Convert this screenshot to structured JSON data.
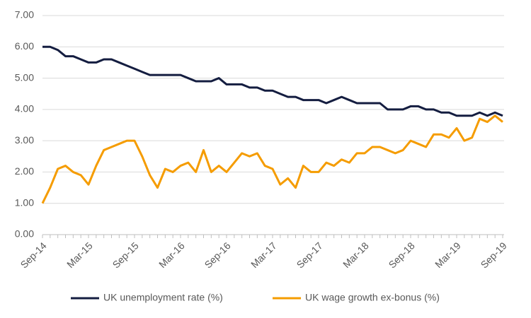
{
  "chart_data": {
    "type": "line",
    "categories": [
      "Sep-14",
      null,
      null,
      null,
      null,
      null,
      "Mar-15",
      null,
      null,
      null,
      null,
      null,
      "Sep-15",
      null,
      null,
      null,
      null,
      null,
      "Mar-16",
      null,
      null,
      null,
      null,
      null,
      "Sep-16",
      null,
      null,
      null,
      null,
      null,
      "Mar-17",
      null,
      null,
      null,
      null,
      null,
      "Sep-17",
      null,
      null,
      null,
      null,
      null,
      "Mar-18",
      null,
      null,
      null,
      null,
      null,
      "Sep-18",
      null,
      null,
      null,
      null,
      null,
      "Mar-19",
      null,
      null,
      null,
      null,
      null,
      "Sep-19"
    ],
    "series": [
      {
        "name": "UK unemployment rate (%)",
        "color": "#141d40",
        "values": [
          6.0,
          6.0,
          5.9,
          5.7,
          5.7,
          5.6,
          5.5,
          5.5,
          5.6,
          5.6,
          5.5,
          5.4,
          5.3,
          5.2,
          5.1,
          5.1,
          5.1,
          5.1,
          5.1,
          5.0,
          4.9,
          4.9,
          4.9,
          5.0,
          4.8,
          4.8,
          4.8,
          4.7,
          4.7,
          4.6,
          4.6,
          4.5,
          4.4,
          4.4,
          4.3,
          4.3,
          4.3,
          4.2,
          4.3,
          4.4,
          4.3,
          4.2,
          4.2,
          4.2,
          4.2,
          4.0,
          4.0,
          4.0,
          4.1,
          4.1,
          4.0,
          4.0,
          3.9,
          3.9,
          3.8,
          3.8,
          3.8,
          3.9,
          3.8,
          3.9,
          3.8
        ]
      },
      {
        "name": "UK wage growth ex-bonus (%)",
        "color": "#f59c00",
        "values": [
          1.0,
          1.5,
          2.1,
          2.2,
          2.0,
          1.9,
          1.6,
          2.2,
          2.7,
          2.8,
          2.9,
          3.0,
          3.0,
          2.5,
          1.9,
          1.5,
          2.1,
          2.0,
          2.2,
          2.3,
          2.0,
          2.7,
          2.0,
          2.2,
          2.0,
          2.3,
          2.6,
          2.5,
          2.6,
          2.2,
          2.1,
          1.6,
          1.8,
          1.5,
          2.2,
          2.0,
          2.0,
          2.3,
          2.2,
          2.4,
          2.3,
          2.6,
          2.6,
          2.8,
          2.8,
          2.7,
          2.6,
          2.7,
          3.0,
          2.9,
          2.8,
          3.2,
          3.2,
          3.1,
          3.4,
          3.0,
          3.1,
          3.7,
          3.6,
          3.8,
          3.6
        ]
      }
    ],
    "ylim": [
      0,
      7
    ],
    "yticks": [
      {
        "value": 0,
        "label": "0.00"
      },
      {
        "value": 1,
        "label": "1.00"
      },
      {
        "value": 2,
        "label": "2.00"
      },
      {
        "value": 3,
        "label": "3.00"
      },
      {
        "value": 4,
        "label": "4.00"
      },
      {
        "value": 5,
        "label": "5.00"
      },
      {
        "value": 6,
        "label": "6.00"
      },
      {
        "value": 7,
        "label": "7.00"
      }
    ],
    "grid": true,
    "legend": "bottom"
  }
}
